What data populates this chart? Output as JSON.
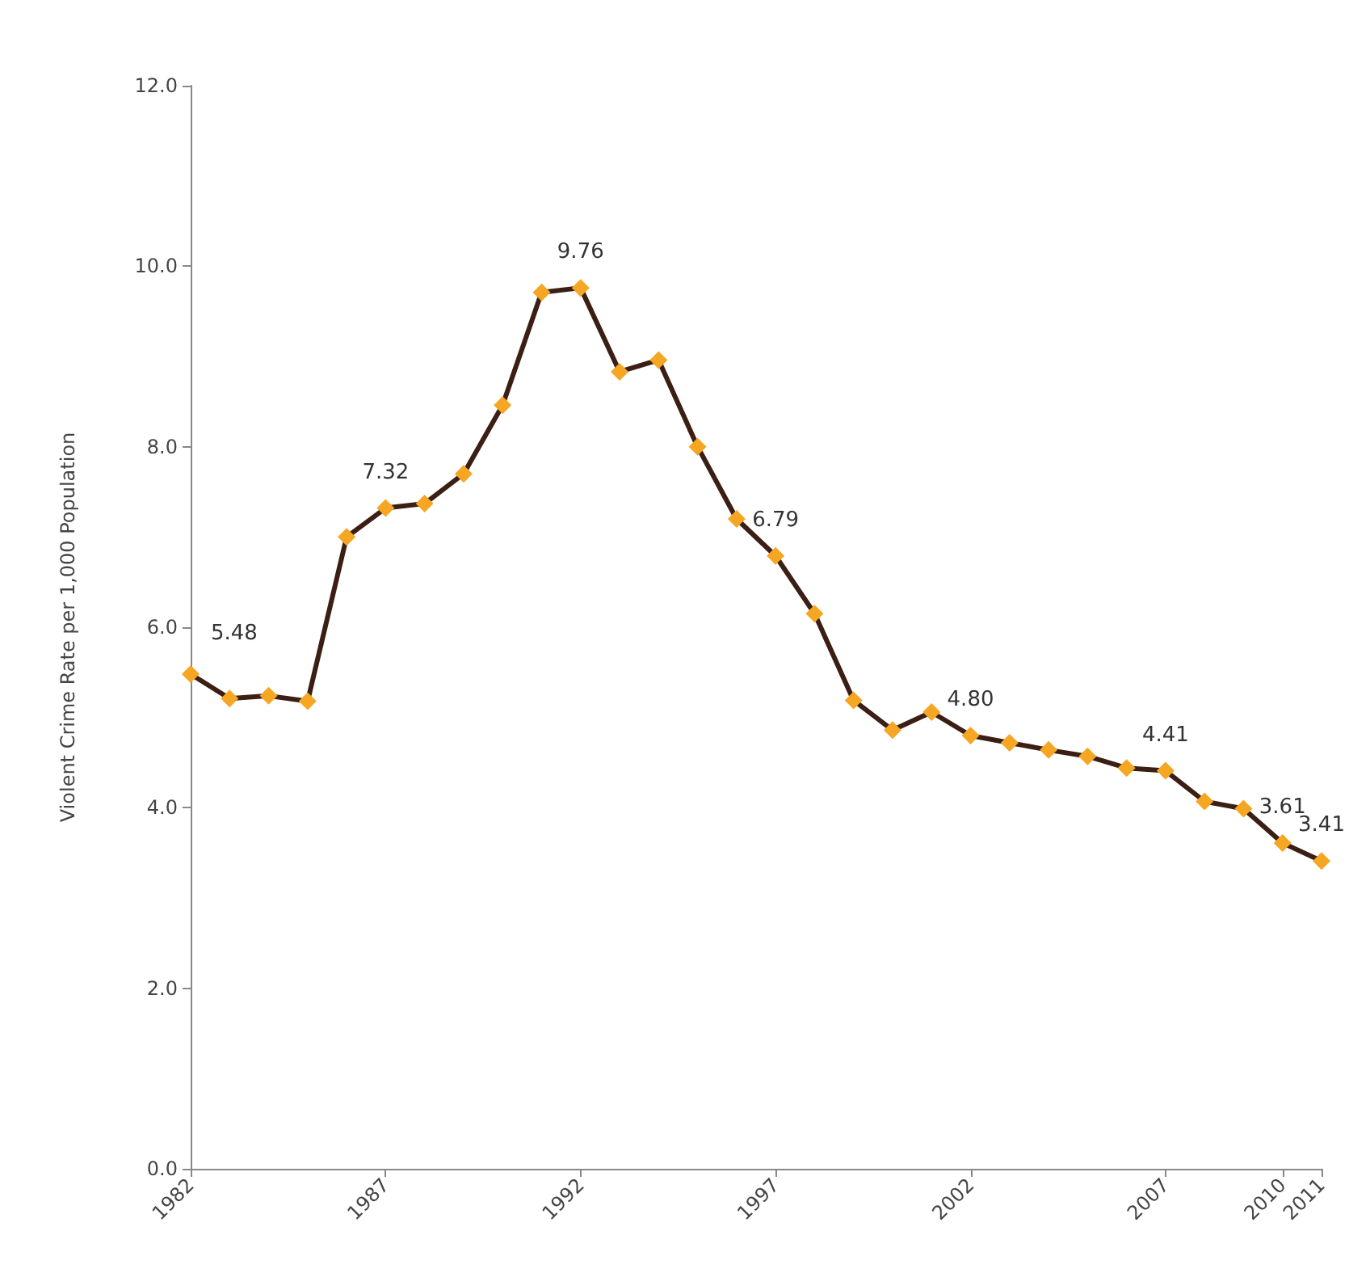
{
  "chart_data": {
    "type": "line",
    "ylabel": "Violent Crime Rate per 1,000 Population",
    "x": [
      1982,
      1983,
      1984,
      1985,
      1986,
      1987,
      1988,
      1989,
      1990,
      1991,
      1992,
      1993,
      1994,
      1995,
      1996,
      1997,
      1998,
      1999,
      2000,
      2001,
      2002,
      2003,
      2004,
      2005,
      2006,
      2007,
      2008,
      2009,
      2010,
      2011
    ],
    "series": [
      {
        "color": "#f5a623",
        "values": [
          5.48,
          5.21,
          5.24,
          5.18,
          7.0,
          7.32,
          7.37,
          7.7,
          8.46,
          9.71,
          9.76,
          8.83,
          8.96,
          8.0,
          7.2,
          6.79,
          6.15,
          5.19,
          4.86,
          5.06,
          4.8,
          4.72,
          4.64,
          4.57,
          4.44,
          4.41,
          4.07,
          3.99,
          3.61,
          3.41
        ],
        "value_labels": [
          "5.48",
          null,
          null,
          null,
          null,
          "7.32",
          null,
          null,
          null,
          null,
          "9.76",
          null,
          null,
          null,
          null,
          "6.79",
          null,
          null,
          null,
          null,
          "4.80",
          null,
          null,
          null,
          null,
          "4.41",
          null,
          null,
          "3.61",
          "3.41"
        ]
      }
    ],
    "xlim": [
      1982,
      2011
    ],
    "xticks": [
      1982,
      1987,
      1992,
      1997,
      2002,
      2007,
      2010,
      2011
    ],
    "ylim": [
      0,
      12
    ],
    "yticks": [
      {
        "value": 0,
        "label": "0.0"
      },
      {
        "value": 2,
        "label": "2.0"
      },
      {
        "value": 4,
        "label": "4.0"
      },
      {
        "value": 6,
        "label": "6.0"
      },
      {
        "value": 8,
        "label": "8.0"
      },
      {
        "value": 10,
        "label": "10.0"
      },
      {
        "value": 12,
        "label": "12.0"
      }
    ],
    "grid": false,
    "marker": "diamond",
    "line_style": "solid"
  }
}
